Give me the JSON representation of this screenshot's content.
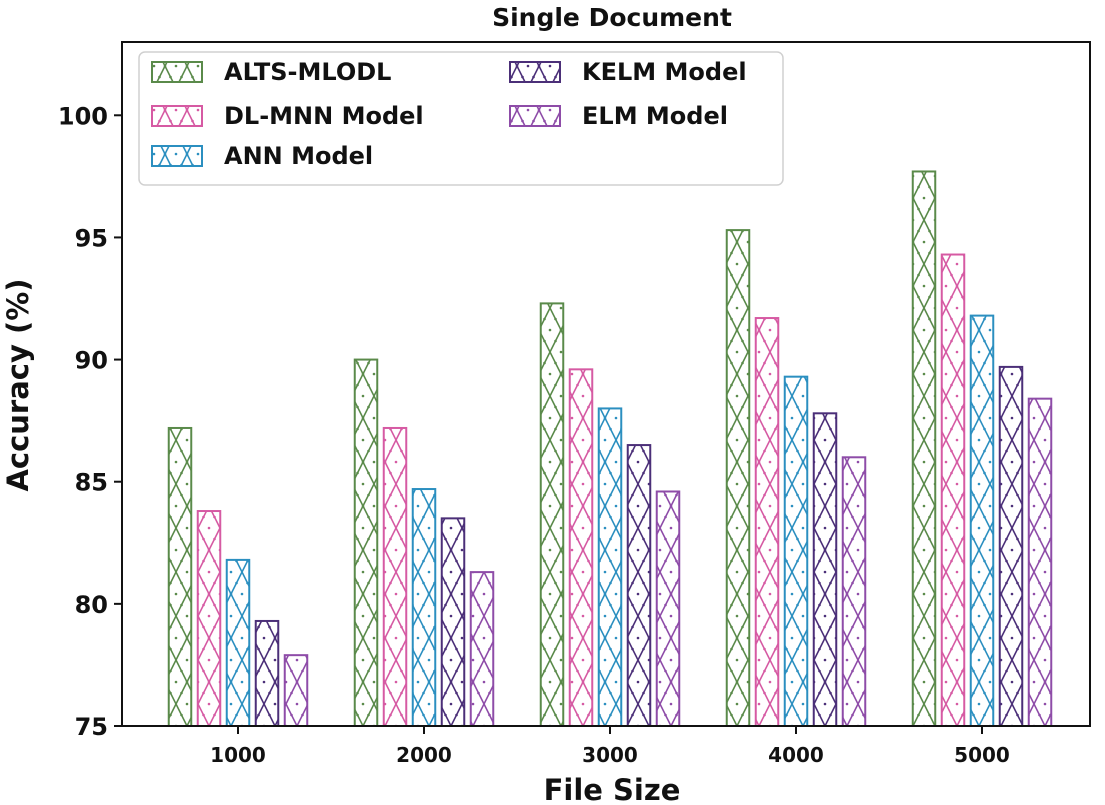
{
  "chart_data": {
    "type": "bar",
    "title": "Single Document",
    "xlabel": "File Size",
    "ylabel": "Accuracy (%)",
    "categories": [
      "1000",
      "2000",
      "3000",
      "4000",
      "5000"
    ],
    "ylim": [
      75,
      103
    ],
    "yticks": [
      "75",
      "80",
      "85",
      "90",
      "95",
      "100"
    ],
    "grid": false,
    "legend_position": "top-left",
    "series": [
      {
        "name": "ALTS-MLODL",
        "color": "#5a8a4a",
        "values": [
          87.2,
          90.0,
          92.3,
          95.3,
          97.7
        ]
      },
      {
        "name": "DL-MNN Model",
        "color": "#d65aa3",
        "values": [
          83.8,
          87.2,
          89.6,
          91.7,
          94.3
        ]
      },
      {
        "name": "ANN Model",
        "color": "#2b8fc0",
        "values": [
          81.8,
          84.7,
          88.0,
          89.3,
          91.8
        ]
      },
      {
        "name": "KELM Model",
        "color": "#4b2f78",
        "values": [
          79.3,
          83.5,
          86.5,
          87.8,
          89.7
        ]
      },
      {
        "name": "ELM Model",
        "color": "#8e4ca8",
        "values": [
          77.9,
          81.3,
          84.6,
          86.0,
          88.4
        ]
      }
    ]
  }
}
